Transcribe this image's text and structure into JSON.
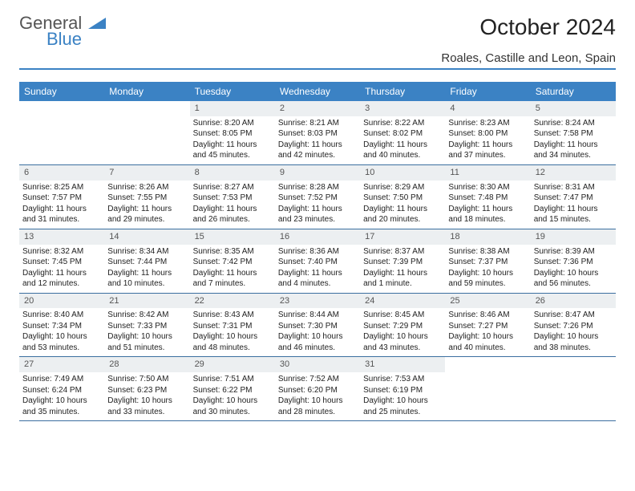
{
  "brand": {
    "word1": "General",
    "word2": "Blue"
  },
  "title": "October 2024",
  "location": "Roales, Castille and Leon, Spain",
  "colors": {
    "header_bg": "#3b82c4",
    "header_text": "#ffffff",
    "daynum_bg": "#eceff1",
    "daynum_text": "#555555",
    "border": "#3b6fa0",
    "body_text": "#222222",
    "background": "#ffffff"
  },
  "day_names": [
    "Sunday",
    "Monday",
    "Tuesday",
    "Wednesday",
    "Thursday",
    "Friday",
    "Saturday"
  ],
  "weeks": [
    [
      {
        "blank": true
      },
      {
        "blank": true
      },
      {
        "n": "1",
        "sr": "Sunrise: 8:20 AM",
        "ss": "Sunset: 8:05 PM",
        "dl": "Daylight: 11 hours and 45 minutes."
      },
      {
        "n": "2",
        "sr": "Sunrise: 8:21 AM",
        "ss": "Sunset: 8:03 PM",
        "dl": "Daylight: 11 hours and 42 minutes."
      },
      {
        "n": "3",
        "sr": "Sunrise: 8:22 AM",
        "ss": "Sunset: 8:02 PM",
        "dl": "Daylight: 11 hours and 40 minutes."
      },
      {
        "n": "4",
        "sr": "Sunrise: 8:23 AM",
        "ss": "Sunset: 8:00 PM",
        "dl": "Daylight: 11 hours and 37 minutes."
      },
      {
        "n": "5",
        "sr": "Sunrise: 8:24 AM",
        "ss": "Sunset: 7:58 PM",
        "dl": "Daylight: 11 hours and 34 minutes."
      }
    ],
    [
      {
        "n": "6",
        "sr": "Sunrise: 8:25 AM",
        "ss": "Sunset: 7:57 PM",
        "dl": "Daylight: 11 hours and 31 minutes."
      },
      {
        "n": "7",
        "sr": "Sunrise: 8:26 AM",
        "ss": "Sunset: 7:55 PM",
        "dl": "Daylight: 11 hours and 29 minutes."
      },
      {
        "n": "8",
        "sr": "Sunrise: 8:27 AM",
        "ss": "Sunset: 7:53 PM",
        "dl": "Daylight: 11 hours and 26 minutes."
      },
      {
        "n": "9",
        "sr": "Sunrise: 8:28 AM",
        "ss": "Sunset: 7:52 PM",
        "dl": "Daylight: 11 hours and 23 minutes."
      },
      {
        "n": "10",
        "sr": "Sunrise: 8:29 AM",
        "ss": "Sunset: 7:50 PM",
        "dl": "Daylight: 11 hours and 20 minutes."
      },
      {
        "n": "11",
        "sr": "Sunrise: 8:30 AM",
        "ss": "Sunset: 7:48 PM",
        "dl": "Daylight: 11 hours and 18 minutes."
      },
      {
        "n": "12",
        "sr": "Sunrise: 8:31 AM",
        "ss": "Sunset: 7:47 PM",
        "dl": "Daylight: 11 hours and 15 minutes."
      }
    ],
    [
      {
        "n": "13",
        "sr": "Sunrise: 8:32 AM",
        "ss": "Sunset: 7:45 PM",
        "dl": "Daylight: 11 hours and 12 minutes."
      },
      {
        "n": "14",
        "sr": "Sunrise: 8:34 AM",
        "ss": "Sunset: 7:44 PM",
        "dl": "Daylight: 11 hours and 10 minutes."
      },
      {
        "n": "15",
        "sr": "Sunrise: 8:35 AM",
        "ss": "Sunset: 7:42 PM",
        "dl": "Daylight: 11 hours and 7 minutes."
      },
      {
        "n": "16",
        "sr": "Sunrise: 8:36 AM",
        "ss": "Sunset: 7:40 PM",
        "dl": "Daylight: 11 hours and 4 minutes."
      },
      {
        "n": "17",
        "sr": "Sunrise: 8:37 AM",
        "ss": "Sunset: 7:39 PM",
        "dl": "Daylight: 11 hours and 1 minute."
      },
      {
        "n": "18",
        "sr": "Sunrise: 8:38 AM",
        "ss": "Sunset: 7:37 PM",
        "dl": "Daylight: 10 hours and 59 minutes."
      },
      {
        "n": "19",
        "sr": "Sunrise: 8:39 AM",
        "ss": "Sunset: 7:36 PM",
        "dl": "Daylight: 10 hours and 56 minutes."
      }
    ],
    [
      {
        "n": "20",
        "sr": "Sunrise: 8:40 AM",
        "ss": "Sunset: 7:34 PM",
        "dl": "Daylight: 10 hours and 53 minutes."
      },
      {
        "n": "21",
        "sr": "Sunrise: 8:42 AM",
        "ss": "Sunset: 7:33 PM",
        "dl": "Daylight: 10 hours and 51 minutes."
      },
      {
        "n": "22",
        "sr": "Sunrise: 8:43 AM",
        "ss": "Sunset: 7:31 PM",
        "dl": "Daylight: 10 hours and 48 minutes."
      },
      {
        "n": "23",
        "sr": "Sunrise: 8:44 AM",
        "ss": "Sunset: 7:30 PM",
        "dl": "Daylight: 10 hours and 46 minutes."
      },
      {
        "n": "24",
        "sr": "Sunrise: 8:45 AM",
        "ss": "Sunset: 7:29 PM",
        "dl": "Daylight: 10 hours and 43 minutes."
      },
      {
        "n": "25",
        "sr": "Sunrise: 8:46 AM",
        "ss": "Sunset: 7:27 PM",
        "dl": "Daylight: 10 hours and 40 minutes."
      },
      {
        "n": "26",
        "sr": "Sunrise: 8:47 AM",
        "ss": "Sunset: 7:26 PM",
        "dl": "Daylight: 10 hours and 38 minutes."
      }
    ],
    [
      {
        "n": "27",
        "sr": "Sunrise: 7:49 AM",
        "ss": "Sunset: 6:24 PM",
        "dl": "Daylight: 10 hours and 35 minutes."
      },
      {
        "n": "28",
        "sr": "Sunrise: 7:50 AM",
        "ss": "Sunset: 6:23 PM",
        "dl": "Daylight: 10 hours and 33 minutes."
      },
      {
        "n": "29",
        "sr": "Sunrise: 7:51 AM",
        "ss": "Sunset: 6:22 PM",
        "dl": "Daylight: 10 hours and 30 minutes."
      },
      {
        "n": "30",
        "sr": "Sunrise: 7:52 AM",
        "ss": "Sunset: 6:20 PM",
        "dl": "Daylight: 10 hours and 28 minutes."
      },
      {
        "n": "31",
        "sr": "Sunrise: 7:53 AM",
        "ss": "Sunset: 6:19 PM",
        "dl": "Daylight: 10 hours and 25 minutes."
      },
      {
        "blank": true
      },
      {
        "blank": true
      }
    ]
  ]
}
